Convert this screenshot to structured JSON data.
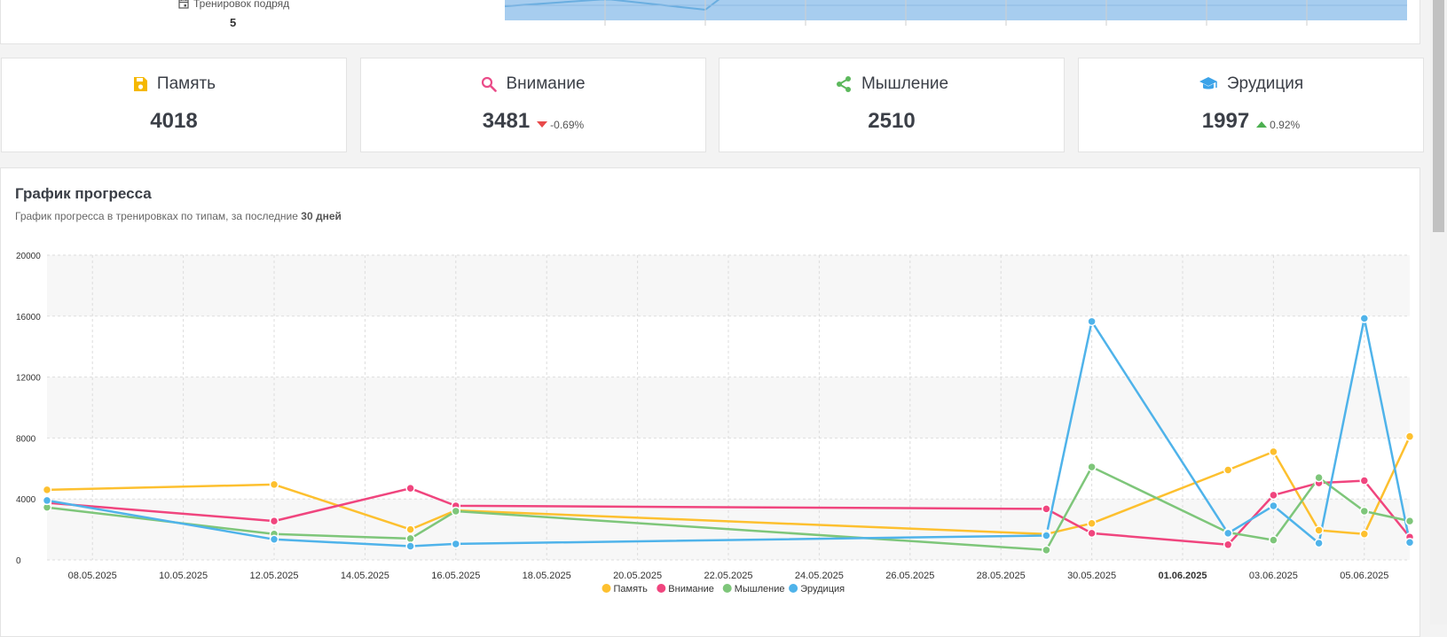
{
  "top_panel": {
    "streak_label": "Тренировок подряд",
    "streak_value": "5"
  },
  "stats": [
    {
      "label": "Память",
      "value": "4018",
      "icon": "save-icon",
      "color": "#f5b800",
      "change": null
    },
    {
      "label": "Внимание",
      "value": "3481",
      "icon": "search-icon",
      "color": "#ea4c89",
      "change": "-0.69%",
      "direction": "down"
    },
    {
      "label": "Мышление",
      "value": "2510",
      "icon": "share-icon",
      "color": "#5cb85c",
      "change": null
    },
    {
      "label": "Эрудиция",
      "value": "1997",
      "icon": "graduation-cap-icon",
      "color": "#3ca3e8",
      "change": "0.92%",
      "direction": "up"
    }
  ],
  "progress_chart": {
    "title": "График прогресса",
    "subtitle_prefix": "График прогресса в тренировках по типам, за последние ",
    "subtitle_bold": "30 дней"
  },
  "chart_data": {
    "type": "line",
    "x_ticks": [
      "08.05.2025",
      "10.05.2025",
      "12.05.2025",
      "14.05.2025",
      "16.05.2025",
      "18.05.2025",
      "20.05.2025",
      "22.05.2025",
      "24.05.2025",
      "26.05.2025",
      "28.05.2025",
      "30.05.2025",
      "01.06.2025",
      "03.06.2025",
      "05.06.2025"
    ],
    "bold_tick": "01.06.2025",
    "x_range": [
      "2025-05-07",
      "2025-06-06"
    ],
    "y_ticks": [
      0,
      4000,
      8000,
      12000,
      16000,
      20000
    ],
    "ylim": [
      0,
      20000
    ],
    "grid": true,
    "legend_position": "bottom",
    "series": [
      {
        "name": "Память",
        "color": "#fdc02f",
        "points": [
          [
            "2025-05-07",
            4600
          ],
          [
            "2025-05-12",
            4950
          ],
          [
            "2025-05-15",
            2000
          ],
          [
            "2025-05-16",
            3250
          ],
          [
            "2025-05-29",
            1700
          ],
          [
            "2025-05-30",
            2400
          ],
          [
            "2025-06-02",
            5900
          ],
          [
            "2025-06-03",
            7100
          ],
          [
            "2025-06-04",
            1950
          ],
          [
            "2025-06-05",
            1700
          ],
          [
            "2025-06-06",
            8100
          ]
        ]
      },
      {
        "name": "Внимание",
        "color": "#f0457e",
        "points": [
          [
            "2025-05-07",
            3750
          ],
          [
            "2025-05-12",
            2550
          ],
          [
            "2025-05-15",
            4700
          ],
          [
            "2025-05-16",
            3550
          ],
          [
            "2025-05-29",
            3350
          ],
          [
            "2025-05-30",
            1750
          ],
          [
            "2025-06-02",
            1000
          ],
          [
            "2025-06-03",
            4250
          ],
          [
            "2025-06-04",
            5050
          ],
          [
            "2025-06-05",
            5200
          ],
          [
            "2025-06-06",
            1500
          ]
        ]
      },
      {
        "name": "Мышление",
        "color": "#7ec67a",
        "points": [
          [
            "2025-05-07",
            3450
          ],
          [
            "2025-05-12",
            1700
          ],
          [
            "2025-05-15",
            1400
          ],
          [
            "2025-05-16",
            3200
          ],
          [
            "2025-05-29",
            650
          ],
          [
            "2025-05-30",
            6100
          ],
          [
            "2025-06-02",
            1800
          ],
          [
            "2025-06-03",
            1300
          ],
          [
            "2025-06-04",
            5400
          ],
          [
            "2025-06-05",
            3200
          ],
          [
            "2025-06-06",
            2550
          ]
        ]
      },
      {
        "name": "Эрудиция",
        "color": "#4fb3ea",
        "points": [
          [
            "2025-05-07",
            3900
          ],
          [
            "2025-05-12",
            1350
          ],
          [
            "2025-05-15",
            900
          ],
          [
            "2025-05-16",
            1050
          ],
          [
            "2025-05-29",
            1600
          ],
          [
            "2025-05-30",
            15650
          ],
          [
            "2025-06-02",
            1750
          ],
          [
            "2025-06-03",
            3550
          ],
          [
            "2025-06-04",
            1100
          ],
          [
            "2025-06-05",
            15850
          ],
          [
            "2025-06-06",
            1150
          ]
        ]
      }
    ]
  }
}
